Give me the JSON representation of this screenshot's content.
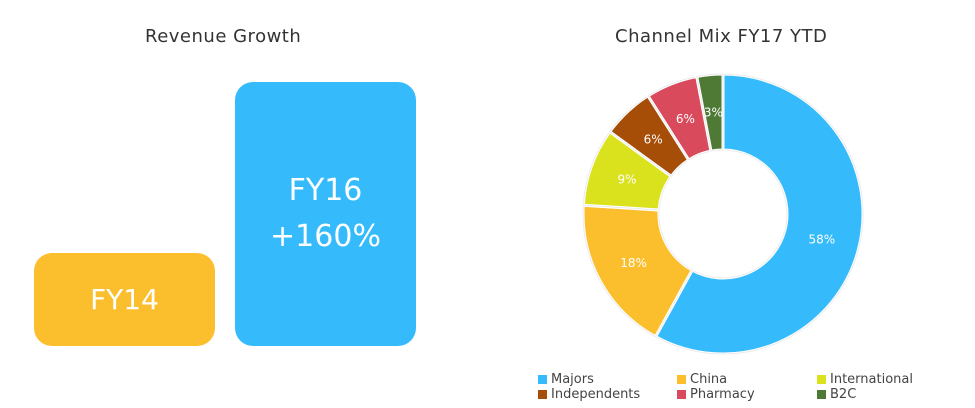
{
  "revenue": {
    "title": "Revenue Growth",
    "fy14_label": "FY14",
    "fy16_label": "FY16",
    "fy16_growth": "+160%",
    "fy14_color": "#FBBF2E",
    "fy16_color": "#35BBFB"
  },
  "chart_data": [
    {
      "type": "bar",
      "title": "Revenue Growth",
      "categories": [
        "FY14",
        "FY16"
      ],
      "values": [
        1.0,
        2.6
      ],
      "data_labels": [
        "",
        "+160%"
      ],
      "colors": [
        "#FBBF2E",
        "#35BBFB"
      ]
    },
    {
      "type": "pie",
      "subtype": "donut",
      "title": "Channel Mix FY17 YTD",
      "legend_position": "bottom",
      "slices": [
        {
          "name": "Majors",
          "value": 58,
          "label": "58%",
          "color": "#35BBFB"
        },
        {
          "name": "China",
          "value": 18,
          "label": "18%",
          "color": "#FBBF2E"
        },
        {
          "name": "International",
          "value": 9,
          "label": "9%",
          "color": "#D9E21C"
        },
        {
          "name": "Independents",
          "value": 6,
          "label": "6%",
          "color": "#A64D08"
        },
        {
          "name": "Pharmacy",
          "value": 6,
          "label": "6%",
          "color": "#D94A5C"
        },
        {
          "name": "B2C",
          "value": 3,
          "label": "3%",
          "color": "#4E7A36"
        }
      ]
    }
  ]
}
